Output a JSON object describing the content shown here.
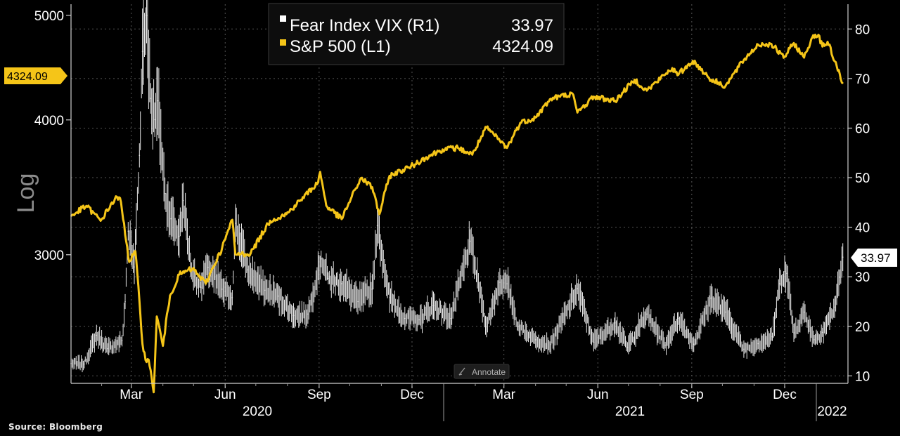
{
  "source": "Source: Bloomberg",
  "legend": {
    "vix_label": "Fear Index VIX (R1)",
    "vix_value": "33.97",
    "spx_label": "S&P 500 (L1)",
    "spx_value": "4324.09"
  },
  "left_axis": {
    "label": "Log",
    "scale": "log",
    "ticks": [
      3000,
      4000,
      5000
    ],
    "range": [
      2280,
      5120
    ]
  },
  "right_axis": {
    "ticks": [
      10,
      20,
      30,
      40,
      50,
      60,
      70,
      80
    ],
    "range": [
      8.5,
      85
    ]
  },
  "x_axis": {
    "months": [
      {
        "label": "Mar",
        "date": "2020-03-01"
      },
      {
        "label": "Jun",
        "date": "2020-06-01"
      },
      {
        "label": "Sep",
        "date": "2020-09-01"
      },
      {
        "label": "Dec",
        "date": "2020-12-01"
      },
      {
        "label": "Mar",
        "date": "2021-03-01"
      },
      {
        "label": "Jun",
        "date": "2021-06-01"
      },
      {
        "label": "Sep",
        "date": "2021-09-01"
      },
      {
        "label": "Dec",
        "date": "2021-12-01"
      }
    ],
    "years": [
      "2020",
      "2021",
      "2022"
    ],
    "range": [
      "2020-01-02",
      "2022-02-01"
    ]
  },
  "annotate_label": "Annotate",
  "colors": {
    "spx": "#f5c518",
    "vix": "#e6e6e6",
    "grid": "#555555",
    "background": "#000000"
  },
  "chart_data": {
    "type": "line",
    "grid": true,
    "legend_position": "top-center",
    "series": [
      {
        "name": "S&P 500 (L1)",
        "axis": "left",
        "points": [
          [
            "2020-01-02",
            3257
          ],
          [
            "2020-01-17",
            3330
          ],
          [
            "2020-01-31",
            3225
          ],
          [
            "2020-02-14",
            3380
          ],
          [
            "2020-02-19",
            3386
          ],
          [
            "2020-02-28",
            2954
          ],
          [
            "2020-03-05",
            3023
          ],
          [
            "2020-03-12",
            2480
          ],
          [
            "2020-03-16",
            2386
          ],
          [
            "2020-03-18",
            2398
          ],
          [
            "2020-03-23",
            2237
          ],
          [
            "2020-03-26",
            2630
          ],
          [
            "2020-04-01",
            2470
          ],
          [
            "2020-04-08",
            2750
          ],
          [
            "2020-04-17",
            2875
          ],
          [
            "2020-04-30",
            2912
          ],
          [
            "2020-05-13",
            2820
          ],
          [
            "2020-05-29",
            3044
          ],
          [
            "2020-06-08",
            3232
          ],
          [
            "2020-06-11",
            3002
          ],
          [
            "2020-06-26",
            3009
          ],
          [
            "2020-07-15",
            3226
          ],
          [
            "2020-07-31",
            3271
          ],
          [
            "2020-08-14",
            3372
          ],
          [
            "2020-08-31",
            3500
          ],
          [
            "2020-09-02",
            3580
          ],
          [
            "2020-09-08",
            3331
          ],
          [
            "2020-09-23",
            3237
          ],
          [
            "2020-10-12",
            3534
          ],
          [
            "2020-10-23",
            3465
          ],
          [
            "2020-10-30",
            3270
          ],
          [
            "2020-11-09",
            3550
          ],
          [
            "2020-11-30",
            3622
          ],
          [
            "2020-12-15",
            3694
          ],
          [
            "2020-12-31",
            3756
          ],
          [
            "2021-01-15",
            3768
          ],
          [
            "2021-01-29",
            3714
          ],
          [
            "2021-02-12",
            3934
          ],
          [
            "2021-03-04",
            3768
          ],
          [
            "2021-03-17",
            3975
          ],
          [
            "2021-04-01",
            4020
          ],
          [
            "2021-04-16",
            4185
          ],
          [
            "2021-05-07",
            4232
          ],
          [
            "2021-05-12",
            4063
          ],
          [
            "2021-05-28",
            4204
          ],
          [
            "2021-06-18",
            4166
          ],
          [
            "2021-07-07",
            4358
          ],
          [
            "2021-07-19",
            4258
          ],
          [
            "2021-08-13",
            4468
          ],
          [
            "2021-08-18",
            4400
          ],
          [
            "2021-09-02",
            4537
          ],
          [
            "2021-09-20",
            4358
          ],
          [
            "2021-10-04",
            4300
          ],
          [
            "2021-10-22",
            4545
          ],
          [
            "2021-11-05",
            4697
          ],
          [
            "2021-11-18",
            4704
          ],
          [
            "2021-11-30",
            4567
          ],
          [
            "2021-12-10",
            4712
          ],
          [
            "2021-12-20",
            4568
          ],
          [
            "2021-12-29",
            4793
          ],
          [
            "2022-01-03",
            4796
          ],
          [
            "2022-01-07",
            4677
          ],
          [
            "2022-01-12",
            4726
          ],
          [
            "2022-01-19",
            4533
          ],
          [
            "2022-01-24",
            4410
          ],
          [
            "2022-01-27",
            4324.09
          ]
        ]
      },
      {
        "name": "Fear Index VIX (R1)",
        "axis": "right",
        "points": [
          [
            "2020-01-02",
            12.5
          ],
          [
            "2020-01-15",
            12.4
          ],
          [
            "2020-01-27",
            18.2
          ],
          [
            "2020-02-07",
            15.5
          ],
          [
            "2020-02-21",
            17.1
          ],
          [
            "2020-02-24",
            25.0
          ],
          [
            "2020-02-27",
            39.2
          ],
          [
            "2020-03-04",
            32.0
          ],
          [
            "2020-03-09",
            54.5
          ],
          [
            "2020-03-12",
            75.5
          ],
          [
            "2020-03-16",
            82.7
          ],
          [
            "2020-03-20",
            66.0
          ],
          [
            "2020-03-24",
            61.7
          ],
          [
            "2020-03-27",
            65.5
          ],
          [
            "2020-04-03",
            46.8
          ],
          [
            "2020-04-09",
            41.7
          ],
          [
            "2020-04-17",
            38.2
          ],
          [
            "2020-04-21",
            45.4
          ],
          [
            "2020-04-29",
            31.2
          ],
          [
            "2020-05-08",
            27.9
          ],
          [
            "2020-05-15",
            31.9
          ],
          [
            "2020-05-29",
            27.5
          ],
          [
            "2020-06-08",
            25.8
          ],
          [
            "2020-06-11",
            40.8
          ],
          [
            "2020-06-23",
            31.4
          ],
          [
            "2020-07-10",
            27.3
          ],
          [
            "2020-07-23",
            26.1
          ],
          [
            "2020-08-07",
            22.2
          ],
          [
            "2020-08-21",
            22.5
          ],
          [
            "2020-09-03",
            33.6
          ],
          [
            "2020-09-10",
            29.7
          ],
          [
            "2020-09-23",
            28.6
          ],
          [
            "2020-10-09",
            25.0
          ],
          [
            "2020-10-23",
            27.5
          ],
          [
            "2020-10-28",
            40.3
          ],
          [
            "2020-11-09",
            25.8
          ],
          [
            "2020-11-24",
            21.6
          ],
          [
            "2020-12-08",
            21.3
          ],
          [
            "2020-12-22",
            24.2
          ],
          [
            "2021-01-08",
            21.6
          ],
          [
            "2021-01-27",
            37.2
          ],
          [
            "2021-02-12",
            19.9
          ],
          [
            "2021-02-25",
            28.9
          ],
          [
            "2021-03-04",
            28.6
          ],
          [
            "2021-03-15",
            20.0
          ],
          [
            "2021-04-01",
            17.3
          ],
          [
            "2021-04-16",
            16.3
          ],
          [
            "2021-05-12",
            27.6
          ],
          [
            "2021-05-28",
            16.8
          ],
          [
            "2021-06-18",
            20.7
          ],
          [
            "2021-06-30",
            15.8
          ],
          [
            "2021-07-19",
            22.5
          ],
          [
            "2021-08-06",
            16.2
          ],
          [
            "2021-08-19",
            21.6
          ],
          [
            "2021-09-03",
            16.4
          ],
          [
            "2021-09-20",
            25.7
          ],
          [
            "2021-10-04",
            22.9
          ],
          [
            "2021-10-22",
            15.4
          ],
          [
            "2021-11-05",
            16.5
          ],
          [
            "2021-11-19",
            17.9
          ],
          [
            "2021-11-26",
            28.6
          ],
          [
            "2021-12-01",
            31.1
          ],
          [
            "2021-12-03",
            30.7
          ],
          [
            "2021-12-10",
            18.7
          ],
          [
            "2021-12-20",
            22.9
          ],
          [
            "2021-12-30",
            17.3
          ],
          [
            "2022-01-07",
            18.8
          ],
          [
            "2022-01-19",
            23.9
          ],
          [
            "2022-01-24",
            29.9
          ],
          [
            "2022-01-27",
            33.97
          ]
        ]
      }
    ]
  }
}
